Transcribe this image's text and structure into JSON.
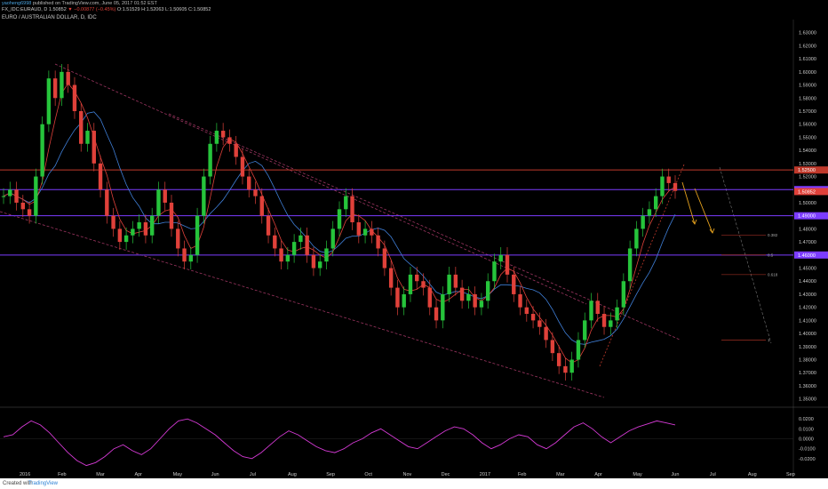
{
  "header": {
    "user": "yaoheng6998",
    "published": "published on TradingView.com, June 05, 2017 01:52 EST",
    "ohlc_prefix": "FX_IDC:EURAUD, D 1.50852",
    "change": "▼ −0.00877 (−0.45%)",
    "ohlc_values": "O:1.51529 H:1.52063 L:1.50605 C:1.50852",
    "symbol_title": "EURO / AUSTRALIAN DOLLAR, D, IDC"
  },
  "footer": {
    "created_with": "Created with",
    "brand": "TradingView"
  },
  "colors": {
    "background": "#000000",
    "bull": "#26c43b",
    "bear": "#e0413a",
    "ma_fast": "#e0413a",
    "ma_slow": "#3f7fd8",
    "channel": "#9b3560",
    "purple_level": "#7c3cff",
    "red_level": "#c0392b",
    "oscillator": "#d63ad6",
    "arrow": "#e6a21e"
  },
  "chart_data": {
    "type": "candlestick",
    "ylim": [
      1.345,
      1.64
    ],
    "y_ticks": [
      "1.63000",
      "1.62000",
      "1.61000",
      "1.60000",
      "1.59000",
      "1.58000",
      "1.57000",
      "1.56000",
      "1.55000",
      "1.54000",
      "1.53000",
      "1.52000",
      "1.51000",
      "1.50000",
      "1.49000",
      "1.48000",
      "1.47000",
      "1.46000",
      "1.45000",
      "1.44000",
      "1.43000",
      "1.42000",
      "1.41000",
      "1.40000",
      "1.39000",
      "1.38000",
      "1.37000",
      "1.36000",
      "1.35000"
    ],
    "x_labels": [
      "2016",
      "Feb",
      "Mar",
      "Apr",
      "May",
      "Jun",
      "Jul",
      "Aug",
      "Sep",
      "Oct",
      "Nov",
      "Dec",
      "2017",
      "Feb",
      "Mar",
      "Apr",
      "May",
      "Jun",
      "Jul",
      "Aug",
      "Sep"
    ],
    "price_close_series": [
      1.505,
      1.51,
      1.5,
      1.495,
      1.49,
      1.52,
      1.56,
      1.595,
      1.58,
      1.6,
      1.59,
      1.57,
      1.545,
      1.555,
      1.53,
      1.51,
      1.49,
      1.48,
      1.47,
      1.475,
      1.48,
      1.485,
      1.475,
      1.49,
      1.51,
      1.5,
      1.48,
      1.465,
      1.455,
      1.46,
      1.49,
      1.52,
      1.545,
      1.555,
      1.55,
      1.545,
      1.535,
      1.52,
      1.51,
      1.505,
      1.49,
      1.475,
      1.465,
      1.455,
      1.46,
      1.47,
      1.475,
      1.46,
      1.45,
      1.455,
      1.465,
      1.48,
      1.495,
      1.505,
      1.485,
      1.475,
      1.48,
      1.475,
      1.465,
      1.45,
      1.435,
      1.42,
      1.43,
      1.445,
      1.44,
      1.435,
      1.42,
      1.41,
      1.43,
      1.445,
      1.435,
      1.425,
      1.43,
      1.42,
      1.425,
      1.44,
      1.455,
      1.46,
      1.445,
      1.43,
      1.42,
      1.415,
      1.41,
      1.405,
      1.395,
      1.385,
      1.375,
      1.37,
      1.38,
      1.395,
      1.41,
      1.425,
      1.415,
      1.405,
      1.41,
      1.42,
      1.44,
      1.465,
      1.48,
      1.49,
      1.495,
      1.505,
      1.52,
      1.515,
      1.509
    ],
    "horizontal_levels": [
      {
        "value": 1.525,
        "label": "1.52500",
        "color": "#c0392b"
      },
      {
        "value": 1.51,
        "label": "1.51000",
        "color": "#7c3cff"
      },
      {
        "value": 1.49,
        "label": "1.49000",
        "color": "#7c3cff"
      },
      {
        "value": 1.46,
        "label": "1.46000",
        "color": "#7c3cff"
      }
    ],
    "last_price": {
      "value": 1.50852,
      "label": "1.50852"
    },
    "fib_levels": [
      {
        "value": 1.475,
        "label": "0.382"
      },
      {
        "value": 1.46,
        "label": "0.5"
      },
      {
        "value": 1.445,
        "label": "0.618"
      },
      {
        "value": 1.395,
        "label": "1"
      }
    ],
    "oscillator": {
      "ylim": [
        -0.03,
        0.03
      ],
      "y_ticks": [
        "0.0200",
        "0.0100",
        "0.0000",
        "-0.0100",
        "-0.0200"
      ],
      "values": [
        0.002,
        0.004,
        0.012,
        0.018,
        0.014,
        0.006,
        -0.004,
        -0.014,
        -0.022,
        -0.027,
        -0.024,
        -0.018,
        -0.01,
        -0.006,
        -0.012,
        -0.016,
        -0.01,
        0.0,
        0.01,
        0.018,
        0.02,
        0.016,
        0.01,
        0.004,
        -0.004,
        -0.012,
        -0.018,
        -0.02,
        -0.014,
        -0.006,
        0.002,
        0.008,
        0.004,
        -0.002,
        -0.008,
        -0.012,
        -0.014,
        -0.01,
        -0.004,
        0.0,
        0.006,
        0.01,
        0.004,
        -0.002,
        -0.008,
        -0.01,
        -0.004,
        0.002,
        0.008,
        0.012,
        0.01,
        0.004,
        -0.004,
        -0.01,
        -0.006,
        0.0,
        0.004,
        0.002,
        -0.006,
        -0.01,
        -0.004,
        0.004,
        0.012,
        0.016,
        0.01,
        0.002,
        -0.004,
        0.002,
        0.008,
        0.012,
        0.015,
        0.018,
        0.016,
        0.014
      ]
    }
  }
}
